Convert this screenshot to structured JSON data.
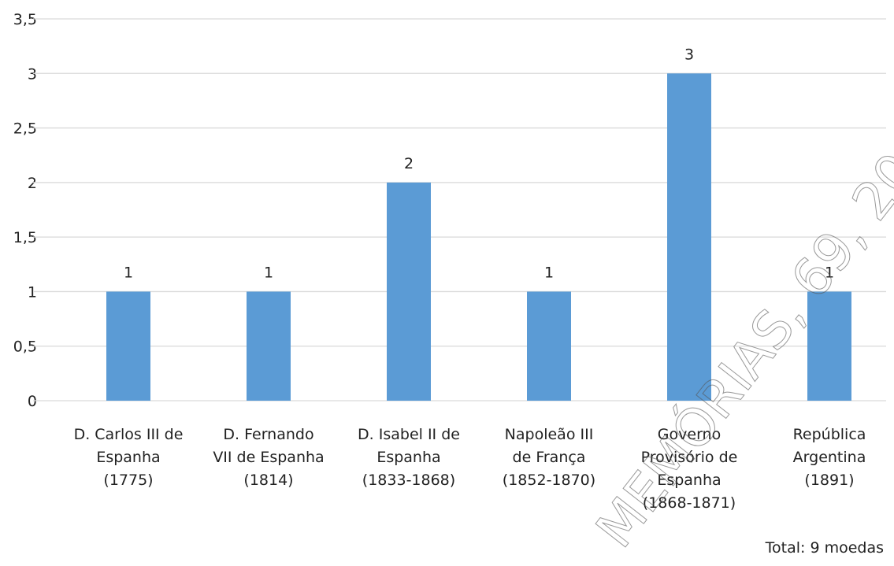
{
  "chart_data": {
    "type": "bar",
    "categories": [
      "D. Carlos III de\nEspanha\n(1775)",
      "D. Fernando\nVII de Espanha\n(1814)",
      "D. Isabel II de\nEspanha\n(1833-1868)",
      "Napoleão III\nde França\n(1852-1870)",
      "Governo\nProvisório de\nEspanha\n(1868-1871)",
      "República\nArgentina\n(1891)"
    ],
    "values": [
      1,
      1,
      2,
      1,
      3,
      1
    ],
    "color": "#5b9bd5",
    "ylim": [
      0,
      3.5
    ],
    "yticks": [
      0,
      {
        "value": 0.5,
        "label": "0,5"
      },
      1,
      {
        "value": 1.5,
        "label": "1,5"
      },
      2,
      {
        "value": 2.5,
        "label": "2,5"
      },
      3,
      {
        "value": 3.5,
        "label": "3,5"
      }
    ],
    "grid": true,
    "annotation": "Total: 9 moedas",
    "watermark": "MEMÓRIAS, 69, 20"
  }
}
